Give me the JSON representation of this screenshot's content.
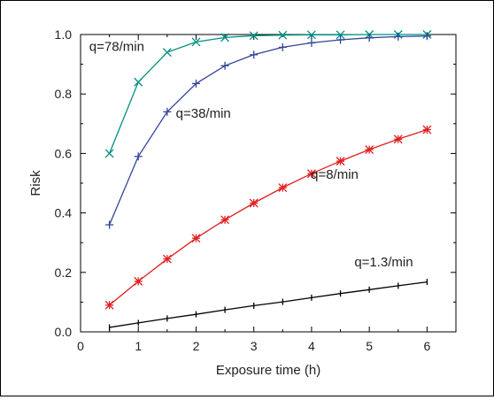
{
  "chart_data": {
    "type": "line",
    "xlabel": "Exposure time (h)",
    "ylabel": "Risk",
    "xlim": [
      0,
      6.5
    ],
    "ylim": [
      0,
      1.0
    ],
    "xticks": [
      0,
      1,
      2,
      3,
      4,
      5,
      6
    ],
    "xtick_labels": [
      "0",
      "1",
      "2",
      "3",
      "4",
      "5",
      "6"
    ],
    "yticks": [
      0,
      0.2,
      0.4,
      0.6,
      0.8,
      1.0
    ],
    "ytick_labels": [
      "0.0",
      "0.2",
      "0.4",
      "0.6",
      "0.8",
      "1.0"
    ],
    "grid": false,
    "x": [
      0.5,
      1,
      1.5,
      2,
      2.5,
      3,
      3.5,
      4,
      4.5,
      5,
      5.5,
      6
    ],
    "series": [
      {
        "name": "q=78/min",
        "color": "#009080",
        "marker": "x",
        "values": [
          0.6,
          0.84,
          0.94,
          0.975,
          0.99,
          0.996,
          0.998,
          0.999,
          0.999,
          1.0,
          1.0,
          1.0
        ]
      },
      {
        "name": "q=38/min",
        "color": "#334499",
        "marker": "plus",
        "values": [
          0.36,
          0.59,
          0.74,
          0.835,
          0.895,
          0.932,
          0.957,
          0.972,
          0.982,
          0.989,
          0.993,
          0.995
        ]
      },
      {
        "name": "q=8/min",
        "color": "#e02020",
        "marker": "asterisk",
        "values": [
          0.09,
          0.17,
          0.245,
          0.315,
          0.377,
          0.433,
          0.485,
          0.532,
          0.574,
          0.613,
          0.648,
          0.68
        ]
      },
      {
        "name": "q=1.3/min",
        "color": "#000000",
        "marker": "tick",
        "values": [
          0.015,
          0.03,
          0.045,
          0.059,
          0.074,
          0.088,
          0.101,
          0.115,
          0.129,
          0.142,
          0.155,
          0.168
        ]
      }
    ]
  }
}
